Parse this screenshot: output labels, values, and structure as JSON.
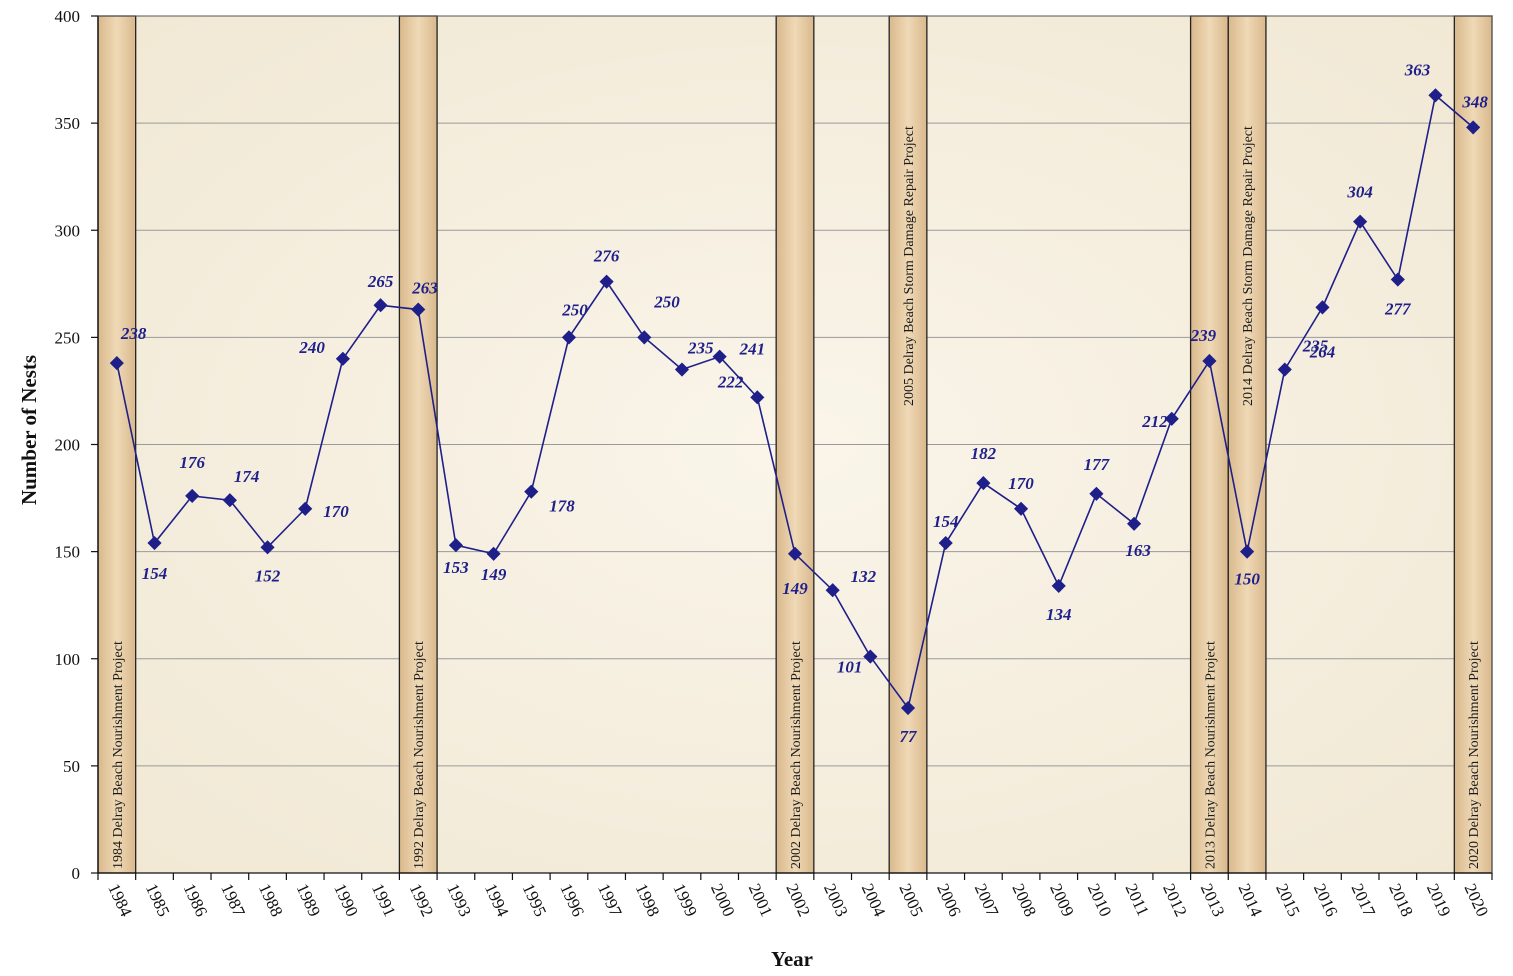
{
  "chart_data": {
    "type": "line",
    "xlabel": "Year",
    "ylabel": "Number of Nests",
    "ylim": [
      0,
      400
    ],
    "yticks": [
      0,
      50,
      100,
      150,
      200,
      250,
      300,
      350,
      400
    ],
    "grid": true,
    "categories": [
      "1984",
      "1985",
      "1986",
      "1987",
      "1988",
      "1989",
      "1990",
      "1991",
      "1992",
      "1993",
      "1994",
      "1995",
      "1996",
      "1997",
      "1998",
      "1999",
      "2000",
      "2001",
      "2002",
      "2003",
      "2004",
      "2005",
      "2006",
      "2007",
      "2008",
      "2009",
      "2010",
      "2011",
      "2012",
      "2013",
      "2014",
      "2015",
      "2016",
      "2017",
      "2018",
      "2019",
      "2020"
    ],
    "series": [
      {
        "values": [
          238,
          154,
          176,
          174,
          152,
          170,
          240,
          265,
          263,
          153,
          149,
          178,
          250,
          276,
          250,
          235,
          241,
          222,
          149,
          132,
          101,
          77,
          154,
          182,
          170,
          134,
          177,
          163,
          212,
          239,
          150,
          235,
          264,
          304,
          277,
          363,
          348
        ],
        "color": "#1f1f8a"
      }
    ],
    "projects": [
      {
        "year": "1984",
        "label": "1984 Delray Beach Nourishment Project"
      },
      {
        "year": "1992",
        "label": "1992 Delray Beach Nourishment Project"
      },
      {
        "year": "2002",
        "label": "2002 Delray Beach Nourishment Project"
      },
      {
        "year": "2005",
        "label": "2005 Delray Beach Storm Damage Repair Project"
      },
      {
        "year": "2013",
        "label": "2013 Delray Beach Nourishment Project"
      },
      {
        "year": "2014",
        "label": "2014 Delray Beach Storm Damage Repair Project"
      },
      {
        "year": "2020",
        "label": "2020 Delray Beach Nourishment Project"
      }
    ],
    "colors": {
      "line": "#1f1f8a",
      "band_fill": "#e6c9a0",
      "band_stroke": "#222222",
      "grid": "#9a9a9a",
      "background": "#f5efe1"
    }
  }
}
